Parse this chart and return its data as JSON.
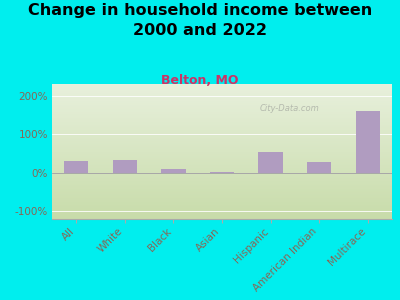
{
  "title": "Change in household income between\n2000 and 2022",
  "subtitle": "Belton, MO",
  "categories": [
    "All",
    "White",
    "Black",
    "Asian",
    "Hispanic",
    "American Indian",
    "Multirace"
  ],
  "values": [
    30,
    32,
    10,
    2,
    55,
    28,
    160
  ],
  "bar_color": "#b09cc0",
  "background_outer": "#00eeee",
  "grad_top": "#e8f0dc",
  "grad_bottom": "#c8dcaa",
  "title_fontsize": 11.5,
  "subtitle_fontsize": 9,
  "subtitle_color": "#cc3366",
  "tick_label_color": "#886655",
  "ylim": [
    -120,
    230
  ],
  "yticks": [
    -100,
    0,
    100,
    200
  ],
  "ytick_labels": [
    "-100%",
    "0%",
    "100%",
    "200%"
  ],
  "watermark": "City-Data.com"
}
